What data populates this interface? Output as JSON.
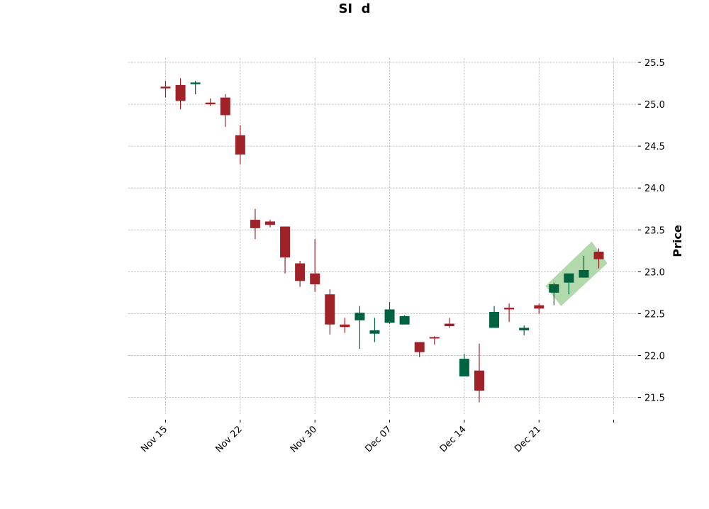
{
  "chart_data": {
    "type": "candlestick",
    "title": "SI  d",
    "xlabel": "",
    "ylabel": "Price",
    "ylim": [
      21.28,
      25.58
    ],
    "yticks": [
      "21.5",
      "22.0",
      "22.5",
      "23.0",
      "23.5",
      "24.0",
      "24.5",
      "25.0",
      "25.5"
    ],
    "xticks": [
      {
        "label": "Nov 15",
        "index": 0
      },
      {
        "label": "Nov 22",
        "index": 5
      },
      {
        "label": "Nov 30",
        "index": 10
      },
      {
        "label": "Dec 07",
        "index": 15
      },
      {
        "label": "Dec 14",
        "index": 20
      },
      {
        "label": "Dec 21",
        "index": 25
      },
      {
        "label": "",
        "index": 30
      }
    ],
    "grid": true,
    "colors": {
      "up": "#006340",
      "down": "#a02128",
      "band": "#a8d5a2"
    },
    "candles": [
      {
        "o": 25.21,
        "h": 25.28,
        "l": 25.08,
        "c": 25.19
      },
      {
        "o": 25.23,
        "h": 25.31,
        "l": 24.94,
        "c": 25.04
      },
      {
        "o": 25.24,
        "h": 25.28,
        "l": 25.12,
        "c": 25.26
      },
      {
        "o": 25.02,
        "h": 25.07,
        "l": 24.98,
        "c": 25.0
      },
      {
        "o": 25.08,
        "h": 25.12,
        "l": 24.73,
        "c": 24.87
      },
      {
        "o": 24.63,
        "h": 24.75,
        "l": 24.28,
        "c": 24.4
      },
      {
        "o": 23.62,
        "h": 23.75,
        "l": 23.39,
        "c": 23.52
      },
      {
        "o": 23.6,
        "h": 23.62,
        "l": 23.53,
        "c": 23.56
      },
      {
        "o": 23.54,
        "h": 23.54,
        "l": 22.98,
        "c": 23.17
      },
      {
        "o": 23.1,
        "h": 23.13,
        "l": 22.82,
        "c": 22.89
      },
      {
        "o": 22.98,
        "h": 23.39,
        "l": 22.76,
        "c": 22.85
      },
      {
        "o": 22.73,
        "h": 22.79,
        "l": 22.25,
        "c": 22.37
      },
      {
        "o": 22.37,
        "h": 22.45,
        "l": 22.27,
        "c": 22.34
      },
      {
        "o": 22.42,
        "h": 22.59,
        "l": 22.08,
        "c": 22.51
      },
      {
        "o": 22.26,
        "h": 22.45,
        "l": 22.16,
        "c": 22.3
      },
      {
        "o": 22.39,
        "h": 22.64,
        "l": 22.38,
        "c": 22.55
      },
      {
        "o": 22.37,
        "h": 22.48,
        "l": 22.37,
        "c": 22.47
      },
      {
        "o": 22.16,
        "h": 22.16,
        "l": 21.98,
        "c": 22.04
      },
      {
        "o": 22.22,
        "h": 22.23,
        "l": 22.13,
        "c": 22.21
      },
      {
        "o": 22.38,
        "h": 22.45,
        "l": 22.33,
        "c": 22.35
      },
      {
        "o": 21.75,
        "h": 22.02,
        "l": 21.75,
        "c": 21.96
      },
      {
        "o": 21.82,
        "h": 22.14,
        "l": 21.44,
        "c": 21.58
      },
      {
        "o": 22.33,
        "h": 22.59,
        "l": 22.33,
        "c": 22.52
      },
      {
        "o": 22.57,
        "h": 22.62,
        "l": 22.4,
        "c": 22.55
      },
      {
        "o": 22.3,
        "h": 22.36,
        "l": 22.24,
        "c": 22.33
      },
      {
        "o": 22.6,
        "h": 22.62,
        "l": 22.5,
        "c": 22.56
      },
      {
        "o": 22.75,
        "h": 22.87,
        "l": 22.6,
        "c": 22.85
      },
      {
        "o": 22.87,
        "h": 22.98,
        "l": 22.73,
        "c": 22.98
      },
      {
        "o": 22.93,
        "h": 23.19,
        "l": 22.93,
        "c": 23.02
      },
      {
        "o": 23.24,
        "h": 23.28,
        "l": 23.04,
        "c": 23.15
      }
    ],
    "highlight_band": {
      "from_index": 26,
      "to_index": 29
    }
  }
}
